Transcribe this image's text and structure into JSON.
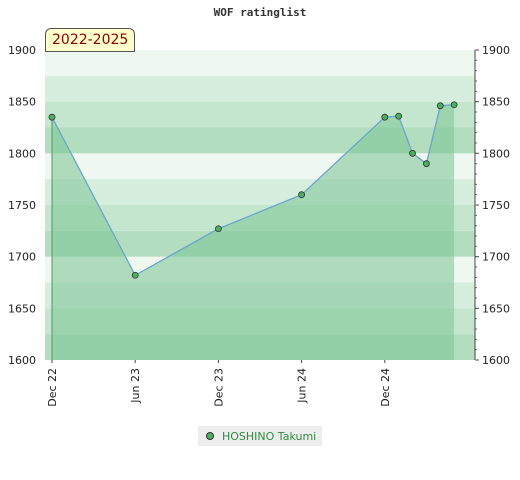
{
  "chart_data": {
    "type": "line",
    "title": "WOF ratinglist",
    "period_label": "2022-2025",
    "xlabel": "",
    "ylabel": "",
    "ylim": [
      1600,
      1900
    ],
    "y_ticks": [
      1600,
      1650,
      1700,
      1750,
      1800,
      1850,
      1900
    ],
    "x_tick_labels": [
      {
        "label": "Dec 22",
        "date": "2022-12"
      },
      {
        "label": "Jun 23",
        "date": "2023-06"
      },
      {
        "label": "Dec 23",
        "date": "2023-12"
      },
      {
        "label": "Jun 24",
        "date": "2024-06"
      },
      {
        "label": "Dec 24",
        "date": "2024-12"
      }
    ],
    "xlim": [
      "2022-12",
      "2025-06"
    ],
    "grid": true,
    "legend_position": "bottom-center",
    "colors": {
      "line": "#6aa6cc",
      "area_fill": "#7cc494",
      "marker": "#4caf60",
      "band_dark": "#a8d8b6",
      "band_light": "#ffffff",
      "badge_bg": "#ffffcc",
      "badge_text": "#8b0000",
      "legend_text": "#2e8b3e"
    },
    "series": [
      {
        "name": "HOSHINO Takumi",
        "points": [
          {
            "date": "2022-12",
            "value": 1835
          },
          {
            "date": "2023-06",
            "value": 1682
          },
          {
            "date": "2023-12",
            "value": 1727
          },
          {
            "date": "2024-06",
            "value": 1760
          },
          {
            "date": "2024-12",
            "value": 1835
          },
          {
            "date": "2025-01",
            "value": 1836
          },
          {
            "date": "2025-02",
            "value": 1800
          },
          {
            "date": "2025-03",
            "value": 1790
          },
          {
            "date": "2025-04",
            "value": 1846
          },
          {
            "date": "2025-05",
            "value": 1847
          }
        ]
      }
    ]
  }
}
